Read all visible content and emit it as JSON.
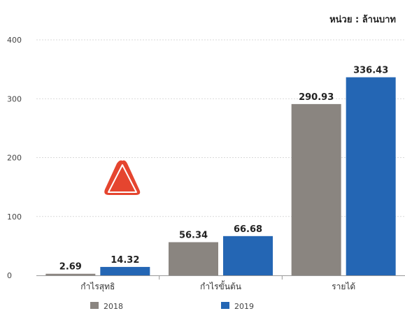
{
  "chart_data": {
    "type": "bar",
    "unit_label": "หน่วย : ล้านบาท",
    "categories": [
      "กำไรสุทธิ",
      "กำไรขั้นต้น",
      "รายได้"
    ],
    "series": [
      {
        "name": "2018",
        "values": [
          2.69,
          56.34,
          290.93
        ],
        "color": "#8a8580"
      },
      {
        "name": "2019",
        "values": [
          14.32,
          66.68,
          336.43
        ],
        "color": "#2466b4"
      }
    ],
    "data_labels": [
      [
        "2.69",
        "56.34",
        "290.93"
      ],
      [
        "14.32",
        "66.68",
        "336.43"
      ]
    ],
    "yticks": [
      "0",
      "100",
      "200",
      "300",
      "400"
    ],
    "ylim": [
      0,
      400
    ],
    "grid": true,
    "legend_position": "bottom"
  },
  "warning_icon": "warning-triangle-icon",
  "warning_color": "#e5452f"
}
